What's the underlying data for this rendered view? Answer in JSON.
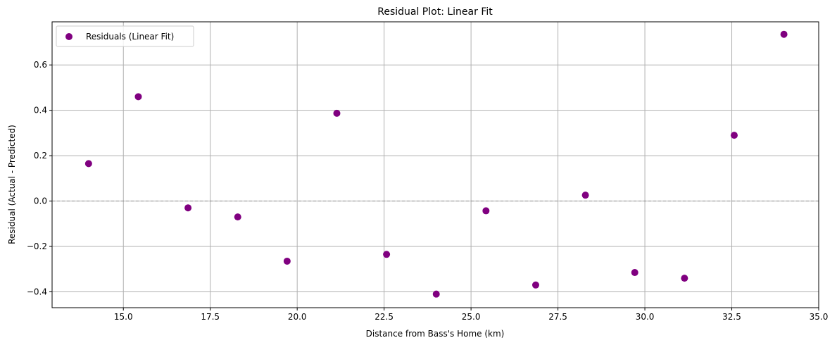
{
  "chart_data": {
    "type": "scatter",
    "title": "Residual Plot: Linear Fit",
    "xlabel": "Distance from Bass's Home (km)",
    "ylabel": "Residual (Actual - Predicted)",
    "xlim": [
      12.95,
      35.0
    ],
    "ylim": [
      -0.47,
      0.79
    ],
    "xticks": [
      15.0,
      17.5,
      20.0,
      22.5,
      25.0,
      27.5,
      30.0,
      32.5,
      35.0
    ],
    "xtick_labels": [
      "15.0",
      "17.5",
      "20.0",
      "22.5",
      "25.0",
      "27.5",
      "30.0",
      "32.5",
      "35.0"
    ],
    "yticks": [
      -0.4,
      -0.2,
      0.0,
      0.2,
      0.4,
      0.6
    ],
    "ytick_labels": [
      "−0.4",
      "−0.2",
      "0.0",
      "0.2",
      "0.4",
      "0.6"
    ],
    "grid": true,
    "reference_line": {
      "y": 0.0,
      "style": "dashed",
      "color": "#808080"
    },
    "legend": {
      "placement": "top-left",
      "entries": [
        "Residuals (Linear Fit)"
      ]
    },
    "series": [
      {
        "name": "Residuals (Linear Fit)",
        "color": "#800080",
        "x": [
          14.0,
          15.43,
          16.86,
          18.29,
          19.71,
          21.14,
          22.57,
          24.0,
          25.43,
          26.86,
          28.29,
          29.71,
          31.14,
          32.57,
          34.0
        ],
        "y": [
          0.165,
          0.46,
          -0.03,
          -0.07,
          -0.265,
          0.387,
          -0.235,
          -0.41,
          -0.043,
          -0.37,
          0.026,
          -0.315,
          -0.34,
          0.29,
          0.735
        ]
      }
    ]
  }
}
